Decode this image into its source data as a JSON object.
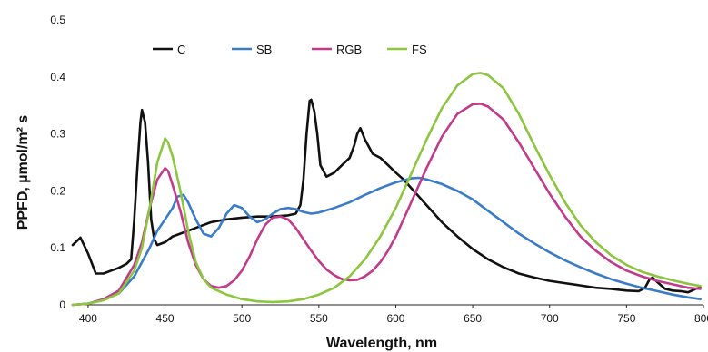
{
  "chart_data": {
    "type": "line",
    "title": "",
    "xlabel": "Wavelength, nm",
    "ylabel": "PPFD, µmol/m² s",
    "xlim": [
      390,
      800
    ],
    "ylim": [
      0,
      0.5
    ],
    "x_ticks": [
      "400",
      "450",
      "500",
      "550",
      "600",
      "650",
      "700",
      "750",
      "800"
    ],
    "y_ticks": [
      "0",
      "0.1",
      "0.2",
      "0.3",
      "0.4",
      "0.5"
    ],
    "grid": false,
    "legend_position": "top-left",
    "series": [
      {
        "name": "C",
        "color": "#111111",
        "points": [
          [
            390,
            0.105
          ],
          [
            395,
            0.118
          ],
          [
            400,
            0.09
          ],
          [
            405,
            0.055
          ],
          [
            410,
            0.055
          ],
          [
            415,
            0.06
          ],
          [
            420,
            0.065
          ],
          [
            425,
            0.072
          ],
          [
            428,
            0.08
          ],
          [
            430,
            0.15
          ],
          [
            432,
            0.24
          ],
          [
            434,
            0.32
          ],
          [
            435,
            0.342
          ],
          [
            437,
            0.32
          ],
          [
            439,
            0.25
          ],
          [
            441,
            0.15
          ],
          [
            443,
            0.115
          ],
          [
            445,
            0.105
          ],
          [
            450,
            0.11
          ],
          [
            455,
            0.12
          ],
          [
            460,
            0.125
          ],
          [
            465,
            0.13
          ],
          [
            470,
            0.135
          ],
          [
            480,
            0.145
          ],
          [
            490,
            0.15
          ],
          [
            500,
            0.153
          ],
          [
            510,
            0.155
          ],
          [
            520,
            0.155
          ],
          [
            530,
            0.157
          ],
          [
            535,
            0.16
          ],
          [
            538,
            0.175
          ],
          [
            540,
            0.22
          ],
          [
            542,
            0.3
          ],
          [
            544,
            0.358
          ],
          [
            545,
            0.36
          ],
          [
            547,
            0.34
          ],
          [
            549,
            0.3
          ],
          [
            551,
            0.245
          ],
          [
            555,
            0.225
          ],
          [
            560,
            0.232
          ],
          [
            565,
            0.245
          ],
          [
            570,
            0.258
          ],
          [
            573,
            0.28
          ],
          [
            575,
            0.3
          ],
          [
            577,
            0.31
          ],
          [
            580,
            0.29
          ],
          [
            585,
            0.265
          ],
          [
            590,
            0.258
          ],
          [
            595,
            0.245
          ],
          [
            600,
            0.232
          ],
          [
            605,
            0.22
          ],
          [
            610,
            0.205
          ],
          [
            620,
            0.175
          ],
          [
            630,
            0.145
          ],
          [
            640,
            0.12
          ],
          [
            650,
            0.098
          ],
          [
            660,
            0.08
          ],
          [
            670,
            0.066
          ],
          [
            680,
            0.055
          ],
          [
            690,
            0.048
          ],
          [
            700,
            0.042
          ],
          [
            710,
            0.038
          ],
          [
            720,
            0.034
          ],
          [
            730,
            0.03
          ],
          [
            740,
            0.028
          ],
          [
            750,
            0.025
          ],
          [
            758,
            0.024
          ],
          [
            762,
            0.03
          ],
          [
            765,
            0.045
          ],
          [
            767,
            0.048
          ],
          [
            770,
            0.04
          ],
          [
            775,
            0.028
          ],
          [
            780,
            0.025
          ],
          [
            785,
            0.024
          ],
          [
            790,
            0.022
          ],
          [
            795,
            0.028
          ],
          [
            798,
            0.03
          ]
        ]
      },
      {
        "name": "SB",
        "color": "#3a7cc7",
        "points": [
          [
            390,
            0.0
          ],
          [
            400,
            0.002
          ],
          [
            410,
            0.01
          ],
          [
            420,
            0.02
          ],
          [
            430,
            0.05
          ],
          [
            435,
            0.075
          ],
          [
            440,
            0.1
          ],
          [
            445,
            0.13
          ],
          [
            450,
            0.15
          ],
          [
            455,
            0.17
          ],
          [
            458,
            0.19
          ],
          [
            462,
            0.193
          ],
          [
            465,
            0.18
          ],
          [
            470,
            0.15
          ],
          [
            475,
            0.125
          ],
          [
            480,
            0.12
          ],
          [
            485,
            0.135
          ],
          [
            490,
            0.16
          ],
          [
            495,
            0.175
          ],
          [
            500,
            0.17
          ],
          [
            505,
            0.155
          ],
          [
            510,
            0.145
          ],
          [
            515,
            0.15
          ],
          [
            520,
            0.16
          ],
          [
            525,
            0.168
          ],
          [
            530,
            0.17
          ],
          [
            535,
            0.168
          ],
          [
            540,
            0.163
          ],
          [
            545,
            0.16
          ],
          [
            550,
            0.162
          ],
          [
            560,
            0.17
          ],
          [
            570,
            0.18
          ],
          [
            580,
            0.193
          ],
          [
            590,
            0.205
          ],
          [
            600,
            0.215
          ],
          [
            610,
            0.222
          ],
          [
            615,
            0.223
          ],
          [
            620,
            0.22
          ],
          [
            630,
            0.212
          ],
          [
            640,
            0.2
          ],
          [
            650,
            0.185
          ],
          [
            660,
            0.165
          ],
          [
            670,
            0.145
          ],
          [
            680,
            0.125
          ],
          [
            690,
            0.108
          ],
          [
            700,
            0.092
          ],
          [
            710,
            0.078
          ],
          [
            720,
            0.066
          ],
          [
            730,
            0.055
          ],
          [
            740,
            0.045
          ],
          [
            750,
            0.037
          ],
          [
            760,
            0.03
          ],
          [
            770,
            0.024
          ],
          [
            780,
            0.018
          ],
          [
            790,
            0.013
          ],
          [
            798,
            0.01
          ]
        ]
      },
      {
        "name": "RGB",
        "color": "#c23b8a",
        "points": [
          [
            390,
            0.0
          ],
          [
            400,
            0.002
          ],
          [
            410,
            0.01
          ],
          [
            420,
            0.025
          ],
          [
            430,
            0.07
          ],
          [
            435,
            0.11
          ],
          [
            440,
            0.17
          ],
          [
            445,
            0.22
          ],
          [
            450,
            0.24
          ],
          [
            452,
            0.235
          ],
          [
            455,
            0.21
          ],
          [
            460,
            0.165
          ],
          [
            465,
            0.11
          ],
          [
            470,
            0.07
          ],
          [
            475,
            0.045
          ],
          [
            480,
            0.033
          ],
          [
            485,
            0.03
          ],
          [
            490,
            0.033
          ],
          [
            495,
            0.043
          ],
          [
            500,
            0.06
          ],
          [
            505,
            0.085
          ],
          [
            510,
            0.115
          ],
          [
            515,
            0.14
          ],
          [
            520,
            0.153
          ],
          [
            525,
            0.155
          ],
          [
            530,
            0.15
          ],
          [
            535,
            0.135
          ],
          [
            540,
            0.115
          ],
          [
            545,
            0.095
          ],
          [
            550,
            0.077
          ],
          [
            555,
            0.062
          ],
          [
            560,
            0.052
          ],
          [
            565,
            0.045
          ],
          [
            570,
            0.043
          ],
          [
            575,
            0.044
          ],
          [
            580,
            0.05
          ],
          [
            585,
            0.06
          ],
          [
            590,
            0.075
          ],
          [
            595,
            0.095
          ],
          [
            600,
            0.12
          ],
          [
            610,
            0.18
          ],
          [
            620,
            0.24
          ],
          [
            630,
            0.295
          ],
          [
            640,
            0.335
          ],
          [
            650,
            0.352
          ],
          [
            655,
            0.353
          ],
          [
            660,
            0.348
          ],
          [
            670,
            0.325
          ],
          [
            680,
            0.285
          ],
          [
            690,
            0.24
          ],
          [
            700,
            0.195
          ],
          [
            710,
            0.155
          ],
          [
            720,
            0.12
          ],
          [
            730,
            0.095
          ],
          [
            740,
            0.075
          ],
          [
            750,
            0.06
          ],
          [
            760,
            0.05
          ],
          [
            770,
            0.042
          ],
          [
            780,
            0.036
          ],
          [
            790,
            0.03
          ],
          [
            798,
            0.028
          ]
        ]
      },
      {
        "name": "FS",
        "color": "#8cc63f",
        "points": [
          [
            390,
            0.0
          ],
          [
            400,
            0.002
          ],
          [
            410,
            0.008
          ],
          [
            420,
            0.02
          ],
          [
            430,
            0.06
          ],
          [
            435,
            0.1
          ],
          [
            440,
            0.17
          ],
          [
            445,
            0.25
          ],
          [
            450,
            0.292
          ],
          [
            452,
            0.285
          ],
          [
            455,
            0.26
          ],
          [
            460,
            0.2
          ],
          [
            465,
            0.13
          ],
          [
            470,
            0.075
          ],
          [
            475,
            0.045
          ],
          [
            480,
            0.03
          ],
          [
            490,
            0.018
          ],
          [
            500,
            0.01
          ],
          [
            510,
            0.006
          ],
          [
            520,
            0.005
          ],
          [
            530,
            0.006
          ],
          [
            540,
            0.01
          ],
          [
            550,
            0.018
          ],
          [
            560,
            0.03
          ],
          [
            570,
            0.05
          ],
          [
            580,
            0.08
          ],
          [
            590,
            0.12
          ],
          [
            600,
            0.17
          ],
          [
            610,
            0.23
          ],
          [
            620,
            0.29
          ],
          [
            630,
            0.345
          ],
          [
            640,
            0.385
          ],
          [
            650,
            0.405
          ],
          [
            655,
            0.407
          ],
          [
            660,
            0.403
          ],
          [
            670,
            0.38
          ],
          [
            680,
            0.335
          ],
          [
            690,
            0.28
          ],
          [
            700,
            0.228
          ],
          [
            710,
            0.18
          ],
          [
            720,
            0.14
          ],
          [
            730,
            0.11
          ],
          [
            740,
            0.087
          ],
          [
            750,
            0.07
          ],
          [
            760,
            0.058
          ],
          [
            770,
            0.05
          ],
          [
            780,
            0.043
          ],
          [
            790,
            0.037
          ],
          [
            798,
            0.033
          ]
        ]
      }
    ]
  }
}
